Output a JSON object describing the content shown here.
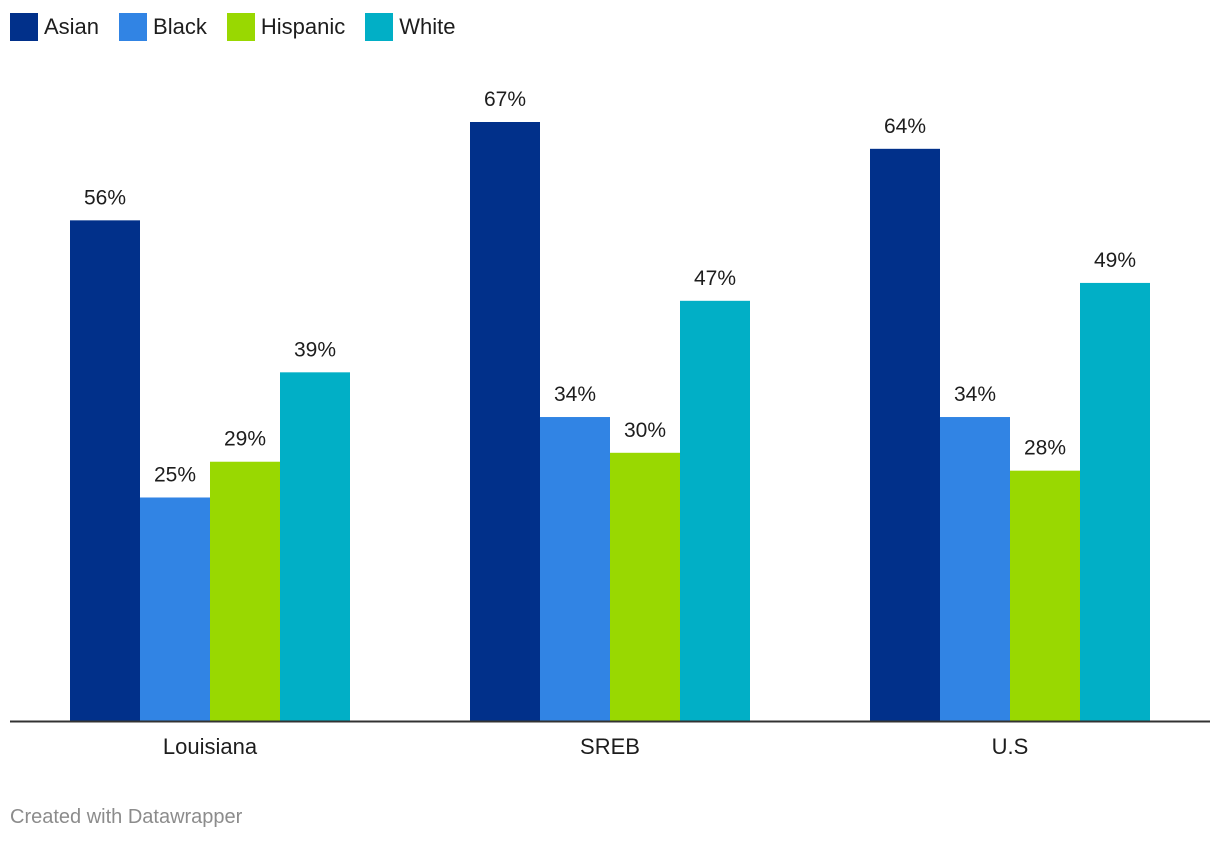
{
  "chart_data": {
    "type": "bar",
    "categories": [
      "Louisiana",
      "SREB",
      "U.S"
    ],
    "series": [
      {
        "name": "Asian",
        "color": "#01308a",
        "values": [
          56,
          67,
          64
        ]
      },
      {
        "name": "Black",
        "color": "#3184e4",
        "values": [
          25,
          34,
          34
        ]
      },
      {
        "name": "Hispanic",
        "color": "#99d801",
        "values": [
          29,
          30,
          28
        ]
      },
      {
        "name": "White",
        "color": "#01afc6",
        "values": [
          39,
          47,
          49
        ]
      }
    ],
    "value_suffix": "%",
    "ylim": [
      0,
      67
    ],
    "grid": false,
    "legend": "top-left"
  },
  "footer": {
    "credit": "Created with Datawrapper"
  }
}
